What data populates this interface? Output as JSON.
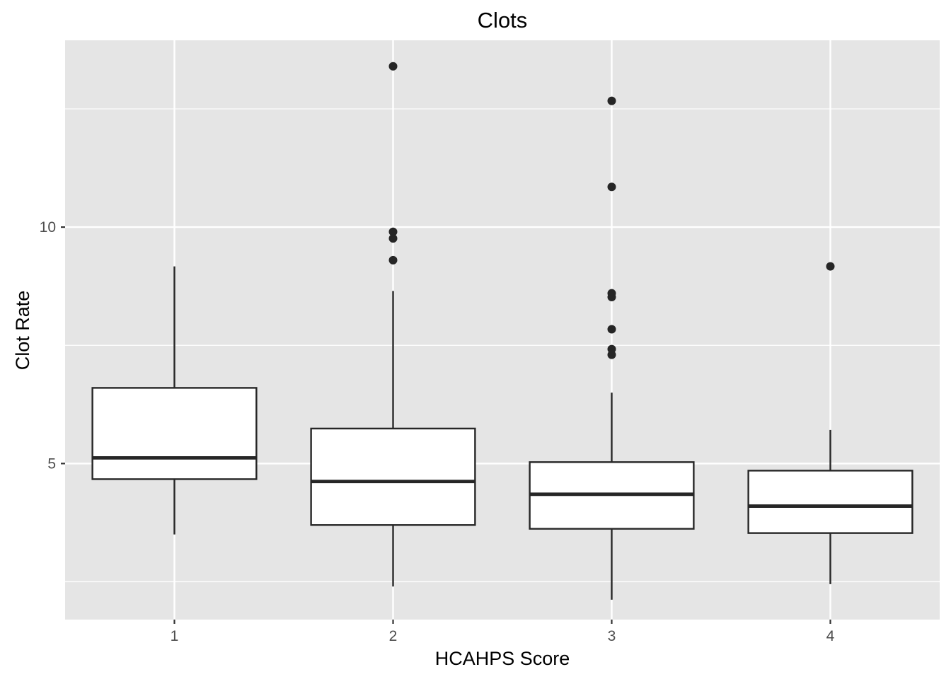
{
  "chart_data": {
    "type": "boxplot",
    "title": "Clots",
    "xlabel": "HCAHPS Score",
    "ylabel": "Clot Rate",
    "categories": [
      "1",
      "2",
      "3",
      "4"
    ],
    "ylim": [
      1.7,
      13.95
    ],
    "y_ticks": [
      {
        "value": 5,
        "label": "5"
      },
      {
        "value": 10,
        "label": "10"
      }
    ],
    "y_minor_ticks": [
      2.5,
      7.5,
      12.5
    ],
    "boxes": [
      {
        "category": "1",
        "whisker_low": 3.5,
        "q1": 4.67,
        "median": 5.12,
        "q3": 6.6,
        "whisker_high": 9.17,
        "outliers": []
      },
      {
        "category": "2",
        "whisker_low": 2.4,
        "q1": 3.7,
        "median": 4.62,
        "q3": 5.74,
        "whisker_high": 8.65,
        "outliers": [
          13.4,
          9.9,
          9.76,
          9.3
        ]
      },
      {
        "category": "3",
        "whisker_low": 2.12,
        "q1": 3.62,
        "median": 4.35,
        "q3": 5.03,
        "whisker_high": 6.5,
        "outliers": [
          12.67,
          10.85,
          8.6,
          8.52,
          7.84,
          7.42,
          7.3
        ]
      },
      {
        "category": "4",
        "whisker_low": 2.45,
        "q1": 3.53,
        "median": 4.1,
        "q3": 4.85,
        "whisker_high": 5.71,
        "outliers": [
          9.17
        ]
      }
    ],
    "grid": true,
    "colors": {
      "panel": "#e5e5e5",
      "grid": "#ffffff",
      "box_fill": "#ffffff",
      "box_stroke": "#262626",
      "point": "#262626"
    }
  }
}
